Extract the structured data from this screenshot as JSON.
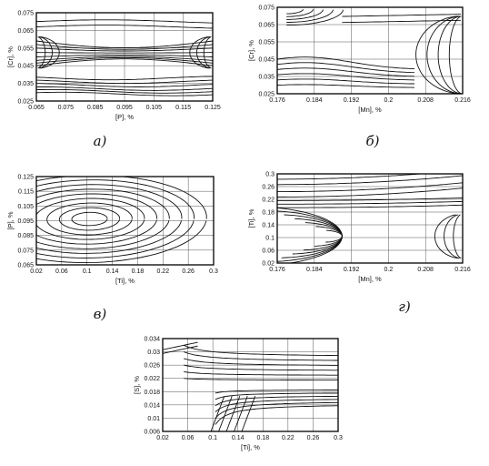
{
  "chart_data": [
    {
      "type": "contour",
      "panel_label": "а)",
      "xlabel": "[P], %",
      "ylabel": "[Cr], %",
      "xlim": [
        0.065,
        0.125
      ],
      "ylim": [
        0.025,
        0.075
      ],
      "x_ticks": [
        "0.065",
        "0.075",
        "0.085",
        "0.095",
        "0.105",
        "0.115",
        "0.125"
      ],
      "y_ticks": [
        "0.025",
        "0.035",
        "0.045",
        "0.055",
        "0.065",
        "0.075"
      ],
      "grid": true
    },
    {
      "type": "contour",
      "panel_label": "б)",
      "xlabel": "[Mn], %",
      "ylabel": "[Cr], %",
      "xlim": [
        0.176,
        0.216
      ],
      "ylim": [
        0.025,
        0.075
      ],
      "x_ticks": [
        "0.176",
        "0.184",
        "0.192",
        "0.2",
        "0.208",
        "0.216"
      ],
      "y_ticks": [
        "0.025",
        "0.035",
        "0.045",
        "0.055",
        "0.065",
        "0.075"
      ],
      "grid": true
    },
    {
      "type": "contour",
      "panel_label": "в)",
      "xlabel": "[Ti], %",
      "ylabel": "[P], %",
      "xlim": [
        0.02,
        0.3
      ],
      "ylim": [
        0.065,
        0.125
      ],
      "x_ticks": [
        "0.02",
        "0.06",
        "0.1",
        "0.14",
        "0.18",
        "0.22",
        "0.26",
        "0.3"
      ],
      "y_ticks": [
        "0.065",
        "0.075",
        "0.085",
        "0.095",
        "0.105",
        "0.115",
        "0.125"
      ],
      "grid": true
    },
    {
      "type": "contour",
      "panel_label": "г)",
      "xlabel": "[Mn], %",
      "ylabel": "[Ti], %",
      "xlim": [
        0.176,
        0.216
      ],
      "ylim": [
        0.02,
        0.3
      ],
      "x_ticks": [
        "0.176",
        "0.184",
        "0.192",
        "0.2",
        "0.208",
        "0.216"
      ],
      "y_ticks": [
        "0.02",
        "0.06",
        "0.1",
        "0.14",
        "0.18",
        "0.22",
        "0.26",
        "0.3"
      ],
      "grid": true
    },
    {
      "type": "contour",
      "panel_label": "",
      "xlabel": "[Ti], %",
      "ylabel": "[S], %",
      "xlim": [
        0.02,
        0.3
      ],
      "ylim": [
        0.006,
        0.034
      ],
      "x_ticks": [
        "0.02",
        "0.06",
        "0.1",
        "0.14",
        "0.18",
        "0.22",
        "0.26",
        "0.3"
      ],
      "y_ticks": [
        "0.006",
        "0.01",
        "0.014",
        "0.018",
        "0.022",
        "0.026",
        "0.03",
        "0.034"
      ],
      "grid": true
    }
  ]
}
